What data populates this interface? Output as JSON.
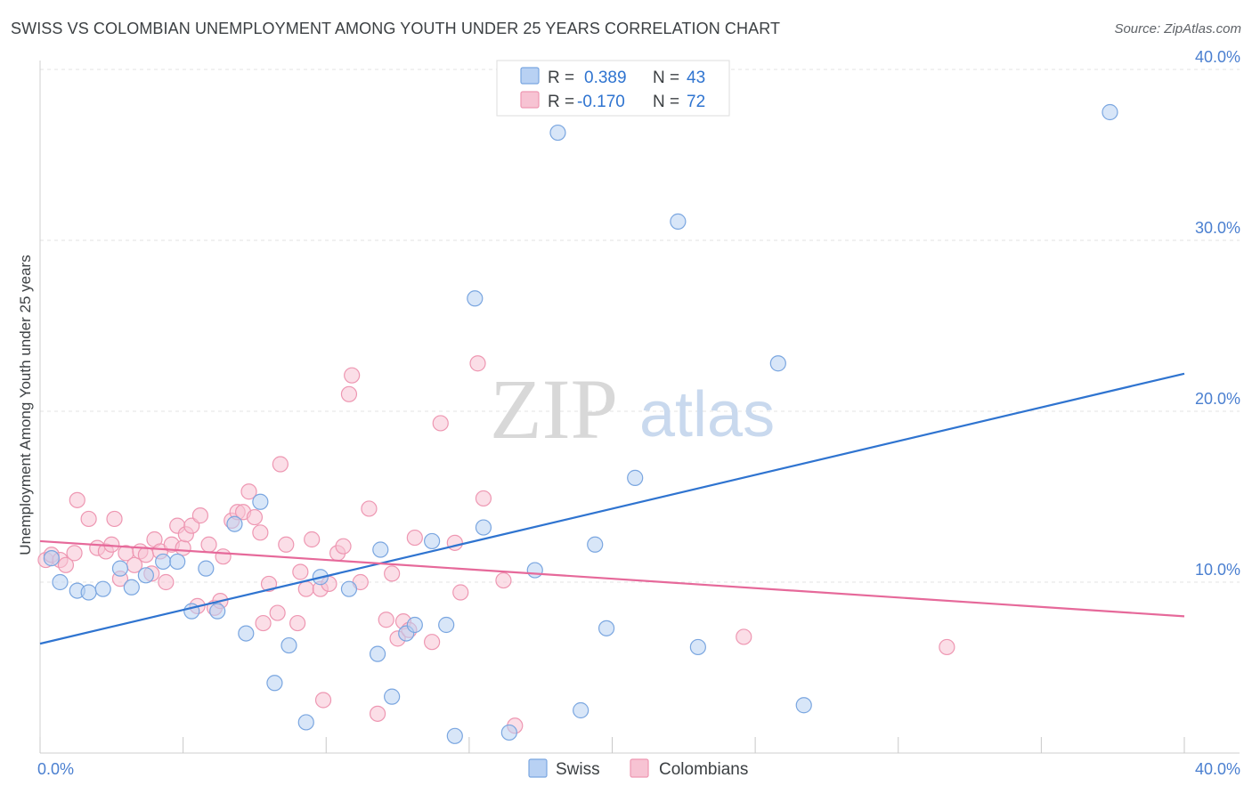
{
  "header": {
    "title": "SWISS VS COLOMBIAN UNEMPLOYMENT AMONG YOUTH UNDER 25 YEARS CORRELATION CHART",
    "source": "Source: ZipAtlas.com"
  },
  "watermark": {
    "zip": "ZIP",
    "atlas": "atlas"
  },
  "colors": {
    "swiss_fill": "#b8d1f3",
    "swiss_stroke": "#7aa6e0",
    "swiss_line": "#2f74d0",
    "colombian_fill": "#f7c3d3",
    "colombian_stroke": "#ee97b2",
    "colombian_line": "#e6699a",
    "grid": "#e3e3e3",
    "axis_text": "#4a7fd0"
  },
  "legend": {
    "rows": [
      {
        "r_label": "R =",
        "r_value": "0.389",
        "n_label": "N =",
        "n_value": "43"
      },
      {
        "r_label": "R =",
        "r_value": "-0.170",
        "n_label": "N =",
        "n_value": "72"
      }
    ]
  },
  "chart_data": {
    "type": "scatter",
    "title": "SWISS VS COLOMBIAN UNEMPLOYMENT AMONG YOUTH UNDER 25 YEARS CORRELATION CHART",
    "xlabel": "",
    "ylabel": "Unemployment Among Youth under 25 years",
    "xlim": [
      0,
      40
    ],
    "ylim": [
      0,
      40
    ],
    "x_tick_labels": [
      "0.0%",
      "40.0%"
    ],
    "y_ticks": [
      10,
      20,
      30,
      40
    ],
    "y_tick_labels": [
      "10.0%",
      "20.0%",
      "30.0%",
      "40.0%"
    ],
    "series": [
      {
        "name": "Swiss",
        "r": 0.389,
        "n": 43,
        "trend": {
          "x": [
            0,
            40
          ],
          "y": [
            6.4,
            22.2
          ]
        },
        "points": [
          [
            0.4,
            11.4
          ],
          [
            0.7,
            10.0
          ],
          [
            1.3,
            9.5
          ],
          [
            1.7,
            9.4
          ],
          [
            2.2,
            9.6
          ],
          [
            2.8,
            10.8
          ],
          [
            3.2,
            9.7
          ],
          [
            3.7,
            10.4
          ],
          [
            4.3,
            11.2
          ],
          [
            4.8,
            11.2
          ],
          [
            5.3,
            8.3
          ],
          [
            5.8,
            10.8
          ],
          [
            6.2,
            8.3
          ],
          [
            6.8,
            13.4
          ],
          [
            7.2,
            7.0
          ],
          [
            7.7,
            14.7
          ],
          [
            8.2,
            4.1
          ],
          [
            8.7,
            6.3
          ],
          [
            9.3,
            1.8
          ],
          [
            9.8,
            10.3
          ],
          [
            10.8,
            9.6
          ],
          [
            11.8,
            5.8
          ],
          [
            11.9,
            11.9
          ],
          [
            12.3,
            3.3
          ],
          [
            12.8,
            7.0
          ],
          [
            13.1,
            7.5
          ],
          [
            13.7,
            12.4
          ],
          [
            14.2,
            7.5
          ],
          [
            14.5,
            1.0
          ],
          [
            15.2,
            26.6
          ],
          [
            15.5,
            13.2
          ],
          [
            16.4,
            1.2
          ],
          [
            17.3,
            10.7
          ],
          [
            18.1,
            36.3
          ],
          [
            18.9,
            2.5
          ],
          [
            19.4,
            12.2
          ],
          [
            19.8,
            7.3
          ],
          [
            20.8,
            16.1
          ],
          [
            22.3,
            31.1
          ],
          [
            23.0,
            6.2
          ],
          [
            25.8,
            22.8
          ],
          [
            26.7,
            2.8
          ],
          [
            37.4,
            37.5
          ]
        ]
      },
      {
        "name": "Colombians",
        "r": -0.17,
        "n": 72,
        "trend": {
          "x": [
            0,
            40
          ],
          "y": [
            12.4,
            8.0
          ]
        },
        "points": [
          [
            0.2,
            11.3
          ],
          [
            0.4,
            11.6
          ],
          [
            0.7,
            11.3
          ],
          [
            0.9,
            11.0
          ],
          [
            1.2,
            11.7
          ],
          [
            1.3,
            14.8
          ],
          [
            1.7,
            13.7
          ],
          [
            2.0,
            12.0
          ],
          [
            2.3,
            11.8
          ],
          [
            2.5,
            12.2
          ],
          [
            2.6,
            13.7
          ],
          [
            2.8,
            10.2
          ],
          [
            3.0,
            11.7
          ],
          [
            3.3,
            11.0
          ],
          [
            3.5,
            11.8
          ],
          [
            3.7,
            11.6
          ],
          [
            3.9,
            10.5
          ],
          [
            4.0,
            12.5
          ],
          [
            4.2,
            11.8
          ],
          [
            4.4,
            10.0
          ],
          [
            4.6,
            12.2
          ],
          [
            4.8,
            13.3
          ],
          [
            5.0,
            12.0
          ],
          [
            5.1,
            12.8
          ],
          [
            5.3,
            13.3
          ],
          [
            5.5,
            8.6
          ],
          [
            5.6,
            13.9
          ],
          [
            5.9,
            12.2
          ],
          [
            6.1,
            8.5
          ],
          [
            6.3,
            8.9
          ],
          [
            6.4,
            11.5
          ],
          [
            6.7,
            13.6
          ],
          [
            6.9,
            14.1
          ],
          [
            7.1,
            14.1
          ],
          [
            7.3,
            15.3
          ],
          [
            7.5,
            13.8
          ],
          [
            7.7,
            12.9
          ],
          [
            7.8,
            7.6
          ],
          [
            8.0,
            9.9
          ],
          [
            8.3,
            8.2
          ],
          [
            8.4,
            16.9
          ],
          [
            8.6,
            12.2
          ],
          [
            9.0,
            7.6
          ],
          [
            9.1,
            10.6
          ],
          [
            9.3,
            9.6
          ],
          [
            9.5,
            12.5
          ],
          [
            9.8,
            9.6
          ],
          [
            9.9,
            3.1
          ],
          [
            10.1,
            9.9
          ],
          [
            10.4,
            11.7
          ],
          [
            10.6,
            12.1
          ],
          [
            10.8,
            21.0
          ],
          [
            10.9,
            22.1
          ],
          [
            11.2,
            10.0
          ],
          [
            11.5,
            14.3
          ],
          [
            11.8,
            2.3
          ],
          [
            12.1,
            7.8
          ],
          [
            12.3,
            10.5
          ],
          [
            12.5,
            6.7
          ],
          [
            12.7,
            7.7
          ],
          [
            12.9,
            7.2
          ],
          [
            13.1,
            12.6
          ],
          [
            13.7,
            6.5
          ],
          [
            14.0,
            19.3
          ],
          [
            14.5,
            12.3
          ],
          [
            14.7,
            9.4
          ],
          [
            15.3,
            22.8
          ],
          [
            15.5,
            14.9
          ],
          [
            16.2,
            10.1
          ],
          [
            16.6,
            1.6
          ],
          [
            24.6,
            6.8
          ],
          [
            31.7,
            6.2
          ]
        ]
      }
    ],
    "bottom_legend": [
      "Swiss",
      "Colombians"
    ]
  }
}
